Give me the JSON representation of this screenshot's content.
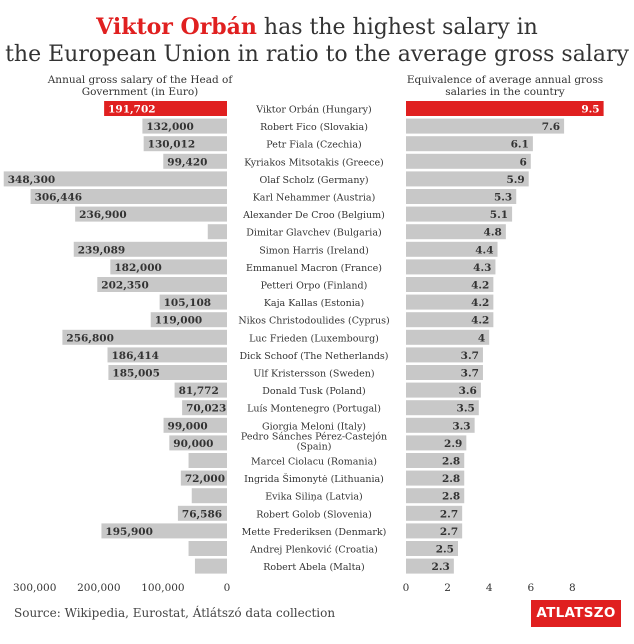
{
  "title": {
    "highlight": "Viktor Orbán",
    "line1_rest": " has the highest salary in",
    "line2": "the European Union in ratio to the average gross salary"
  },
  "subtitles": {
    "left": "Annual gross salary of the Head of Government (in Euro)",
    "right": "Equivalence of average annual gross salaries in the country"
  },
  "source": "Source: Wikipedia, Eurostat, Átlátszó data collection",
  "logo_text": "ATLATSZO",
  "colors": {
    "highlight": "#e02020",
    "bar": "#c8c8c8",
    "text": "#333333"
  },
  "chart_data": [
    {
      "type": "bar",
      "orientation": "horizontal",
      "categories": [
        "Viktor Orbán (Hungary)",
        "Robert Fico (Slovakia)",
        "Petr Fiala (Czechia)",
        "Kyriakos Mitsotakis (Greece)",
        "Olaf Scholz (Germany)",
        "Karl Nehammer (Austria)",
        "Alexander De Croo (Belgium)",
        "Dimitar Glavchev (Bulgaria)",
        "Simon Harris (Ireland)",
        "Emmanuel Macron (France)",
        "Petteri Orpo (Finland)",
        "Kaja Kallas (Estonia)",
        "Nikos Christodoulides (Cyprus)",
        "Luc Frieden (Luxembourg)",
        "Dick Schoof (The Netherlands)",
        "Ulf Kristersson (Sweden)",
        "Donald Tusk (Poland)",
        "Luís Montenegro (Portugal)",
        "Giorgia Meloni (Italy)",
        "Pedro Sánches Pérez-Castejón (Spain)",
        "Marcel Ciolacu (Romania)",
        "Ingrida Šimonytė (Lithuania)",
        "Evika Siliņa (Latvia)",
        "Robert Golob (Slovenia)",
        "Mette Frederiksen (Denmark)",
        "Andrej Plenković (Croatia)",
        "Robert Abela (Malta)"
      ],
      "values": [
        191702,
        132000,
        130012,
        99420,
        348300,
        306446,
        236900,
        30000,
        239089,
        182000,
        202350,
        105108,
        119000,
        256800,
        186414,
        185005,
        81772,
        70023,
        99000,
        90000,
        60000,
        72000,
        55000,
        76586,
        195900,
        60000,
        50000
      ],
      "labels": [
        "191,702",
        "132,000",
        "130,012",
        "99,420",
        "348,300",
        "306,446",
        "236,900",
        "",
        "239,089",
        "182,000",
        "202,350",
        "105,108",
        "119,000",
        "256,800",
        "186,414",
        "185,005",
        "81,772",
        "70,023",
        "99,000",
        "90,000",
        "",
        "72,000",
        "",
        "76,586",
        "195,900",
        "",
        ""
      ],
      "highlight_index": 0,
      "ticks": [
        "300,000",
        "200,000",
        "100,000",
        "0"
      ],
      "tick_values": [
        300000,
        200000,
        100000,
        0
      ],
      "xlim": [
        0,
        350000
      ],
      "direction": "right-to-left"
    },
    {
      "type": "bar",
      "orientation": "horizontal",
      "categories": [
        "Viktor Orbán (Hungary)",
        "Robert Fico (Slovakia)",
        "Petr Fiala (Czechia)",
        "Kyriakos Mitsotakis (Greece)",
        "Olaf Scholz (Germany)",
        "Karl Nehammer (Austria)",
        "Alexander De Croo (Belgium)",
        "Dimitar Glavchev (Bulgaria)",
        "Simon Harris (Ireland)",
        "Emmanuel Macron (France)",
        "Petteri Orpo (Finland)",
        "Kaja Kallas (Estonia)",
        "Nikos Christodoulides (Cyprus)",
        "Luc Frieden (Luxembourg)",
        "Dick Schoof (The Netherlands)",
        "Ulf Kristersson (Sweden)",
        "Donald Tusk (Poland)",
        "Luís Montenegro (Portugal)",
        "Giorgia Meloni (Italy)",
        "Pedro Sánches Pérez-Castejón (Spain)",
        "Marcel Ciolacu (Romania)",
        "Ingrida Šimonytė (Lithuania)",
        "Evika Siliņa (Latvia)",
        "Robert Golob (Slovenia)",
        "Mette Frederiksen (Denmark)",
        "Andrej Plenković (Croatia)",
        "Robert Abela (Malta)"
      ],
      "values": [
        9.5,
        7.6,
        6.1,
        6,
        5.9,
        5.3,
        5.1,
        4.8,
        4.4,
        4.3,
        4.2,
        4.2,
        4.2,
        4,
        3.7,
        3.7,
        3.6,
        3.5,
        3.3,
        2.9,
        2.8,
        2.8,
        2.8,
        2.7,
        2.7,
        2.5,
        2.3
      ],
      "labels": [
        "9.5",
        "7.6",
        "6.1",
        "6",
        "5.9",
        "5.3",
        "5.1",
        "4.8",
        "4.4",
        "4.3",
        "4.2",
        "4.2",
        "4.2",
        "4",
        "3.7",
        "3.7",
        "3.6",
        "3.5",
        "3.3",
        "2.9",
        "2.8",
        "2.8",
        "2.8",
        "2.7",
        "2.7",
        "2.5",
        "2.3"
      ],
      "highlight_index": 0,
      "ticks": [
        "0",
        "2",
        "4",
        "6",
        "8"
      ],
      "tick_values": [
        0,
        2,
        4,
        6,
        8
      ],
      "xlim": [
        0,
        9.5
      ],
      "direction": "left-to-right"
    }
  ]
}
